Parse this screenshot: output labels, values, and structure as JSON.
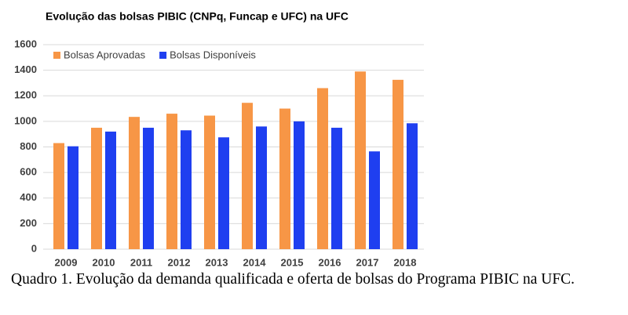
{
  "chart_data": {
    "type": "bar",
    "title": "Evolução das bolsas PIBIC (CNPq, Funcap e UFC) na UFC",
    "categories": [
      "2009",
      "2010",
      "2011",
      "2012",
      "2013",
      "2014",
      "2015",
      "2016",
      "2017",
      "2018"
    ],
    "series": [
      {
        "name": "Bolsas Aprovadas",
        "color": "#f79646",
        "values": [
          830,
          950,
          1035,
          1060,
          1045,
          1145,
          1100,
          1260,
          1390,
          1325
        ]
      },
      {
        "name": "Bolsas Disponíveis",
        "color": "#1f3ff0",
        "values": [
          805,
          920,
          950,
          930,
          875,
          960,
          1000,
          950,
          765,
          985
        ]
      }
    ],
    "ylim": [
      0,
      1600
    ],
    "yticks": [
      0,
      200,
      400,
      600,
      800,
      1000,
      1200,
      1400,
      1600
    ],
    "grid": true,
    "legend": "top-left"
  },
  "caption": "Quadro 1. Evolução da demanda qualificada e oferta de bolsas do Programa PIBIC na UFC."
}
